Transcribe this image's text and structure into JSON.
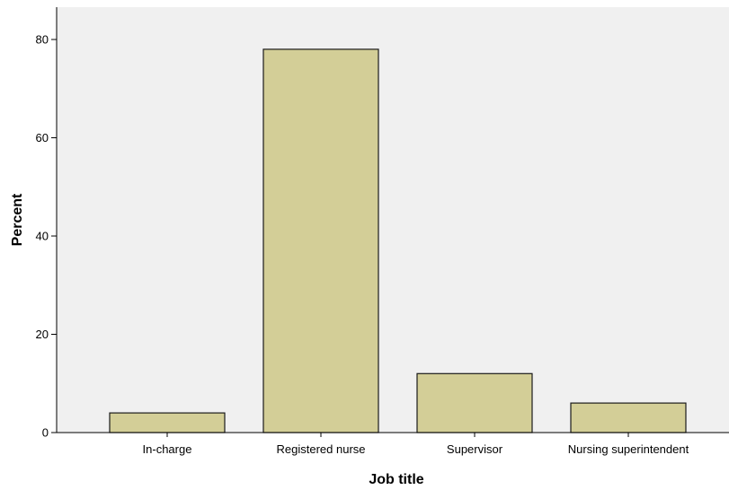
{
  "chart_data": {
    "type": "bar",
    "categories": [
      "In-charge",
      "Registered nurse",
      "Supervisor",
      "Nursing superintendent"
    ],
    "values": [
      4,
      78,
      12,
      6
    ],
    "xlabel": "Job title",
    "ylabel": "Percent",
    "ylim": [
      0,
      80
    ],
    "yticks": [
      "0",
      "20",
      "40",
      "60",
      "80"
    ],
    "grid": false,
    "legend": "none",
    "colors": {
      "bar_fill": "#d3ce97",
      "bar_stroke": "#1a1a1a",
      "plot_background": "#f0f0f0",
      "axis": "#000000"
    }
  }
}
